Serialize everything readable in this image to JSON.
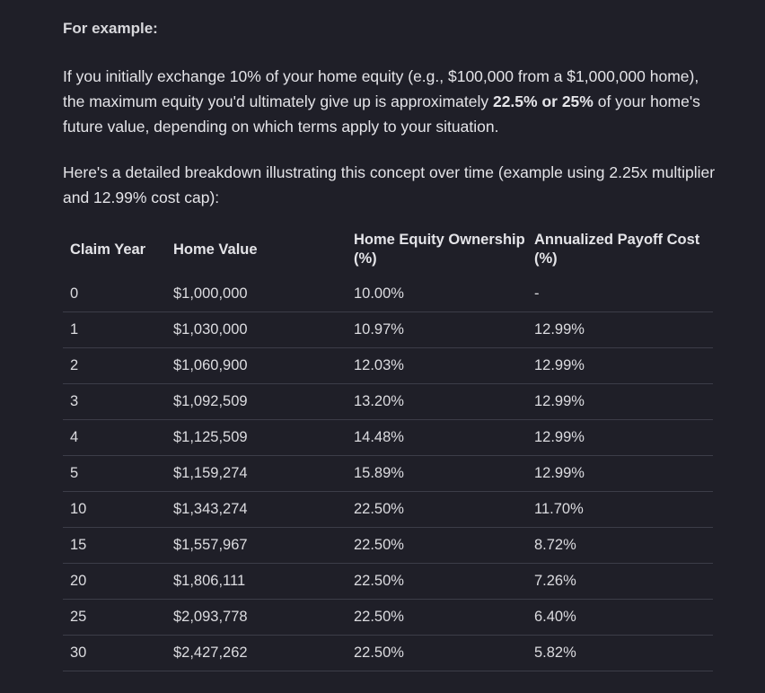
{
  "heading": "For example:",
  "intro": {
    "before": "If you initially exchange 10% of your home equity (e.g., $100,000 from a $1,000,000 home), the maximum equity you'd ultimately give up is approximately ",
    "bold": "22.5% or 25%",
    "after": " of your home's future value, depending on which terms apply to your situation."
  },
  "lead": "Here's a detailed breakdown illustrating this concept over time (example using 2.25x multiplier and 12.99% cost cap):",
  "table": {
    "headers": [
      "Claim Year",
      "Home Value",
      "Home Equity Ownership (%)",
      "Annualized Payoff Cost (%)"
    ],
    "rows": [
      [
        "0",
        "$1,000,000",
        "10.00%",
        "-"
      ],
      [
        "1",
        "$1,030,000",
        "10.97%",
        "12.99%"
      ],
      [
        "2",
        "$1,060,900",
        "12.03%",
        "12.99%"
      ],
      [
        "3",
        "$1,092,509",
        "13.20%",
        "12.99%"
      ],
      [
        "4",
        "$1,125,509",
        "14.48%",
        "12.99%"
      ],
      [
        "5",
        "$1,159,274",
        "15.89%",
        "12.99%"
      ],
      [
        "10",
        "$1,343,274",
        "22.50%",
        "11.70%"
      ],
      [
        "15",
        "$1,557,967",
        "22.50%",
        "8.72%"
      ],
      [
        "20",
        "$1,806,111",
        "22.50%",
        "7.26%"
      ],
      [
        "25",
        "$2,093,778",
        "22.50%",
        "6.40%"
      ],
      [
        "30",
        "$2,427,262",
        "22.50%",
        "5.82%"
      ]
    ]
  }
}
